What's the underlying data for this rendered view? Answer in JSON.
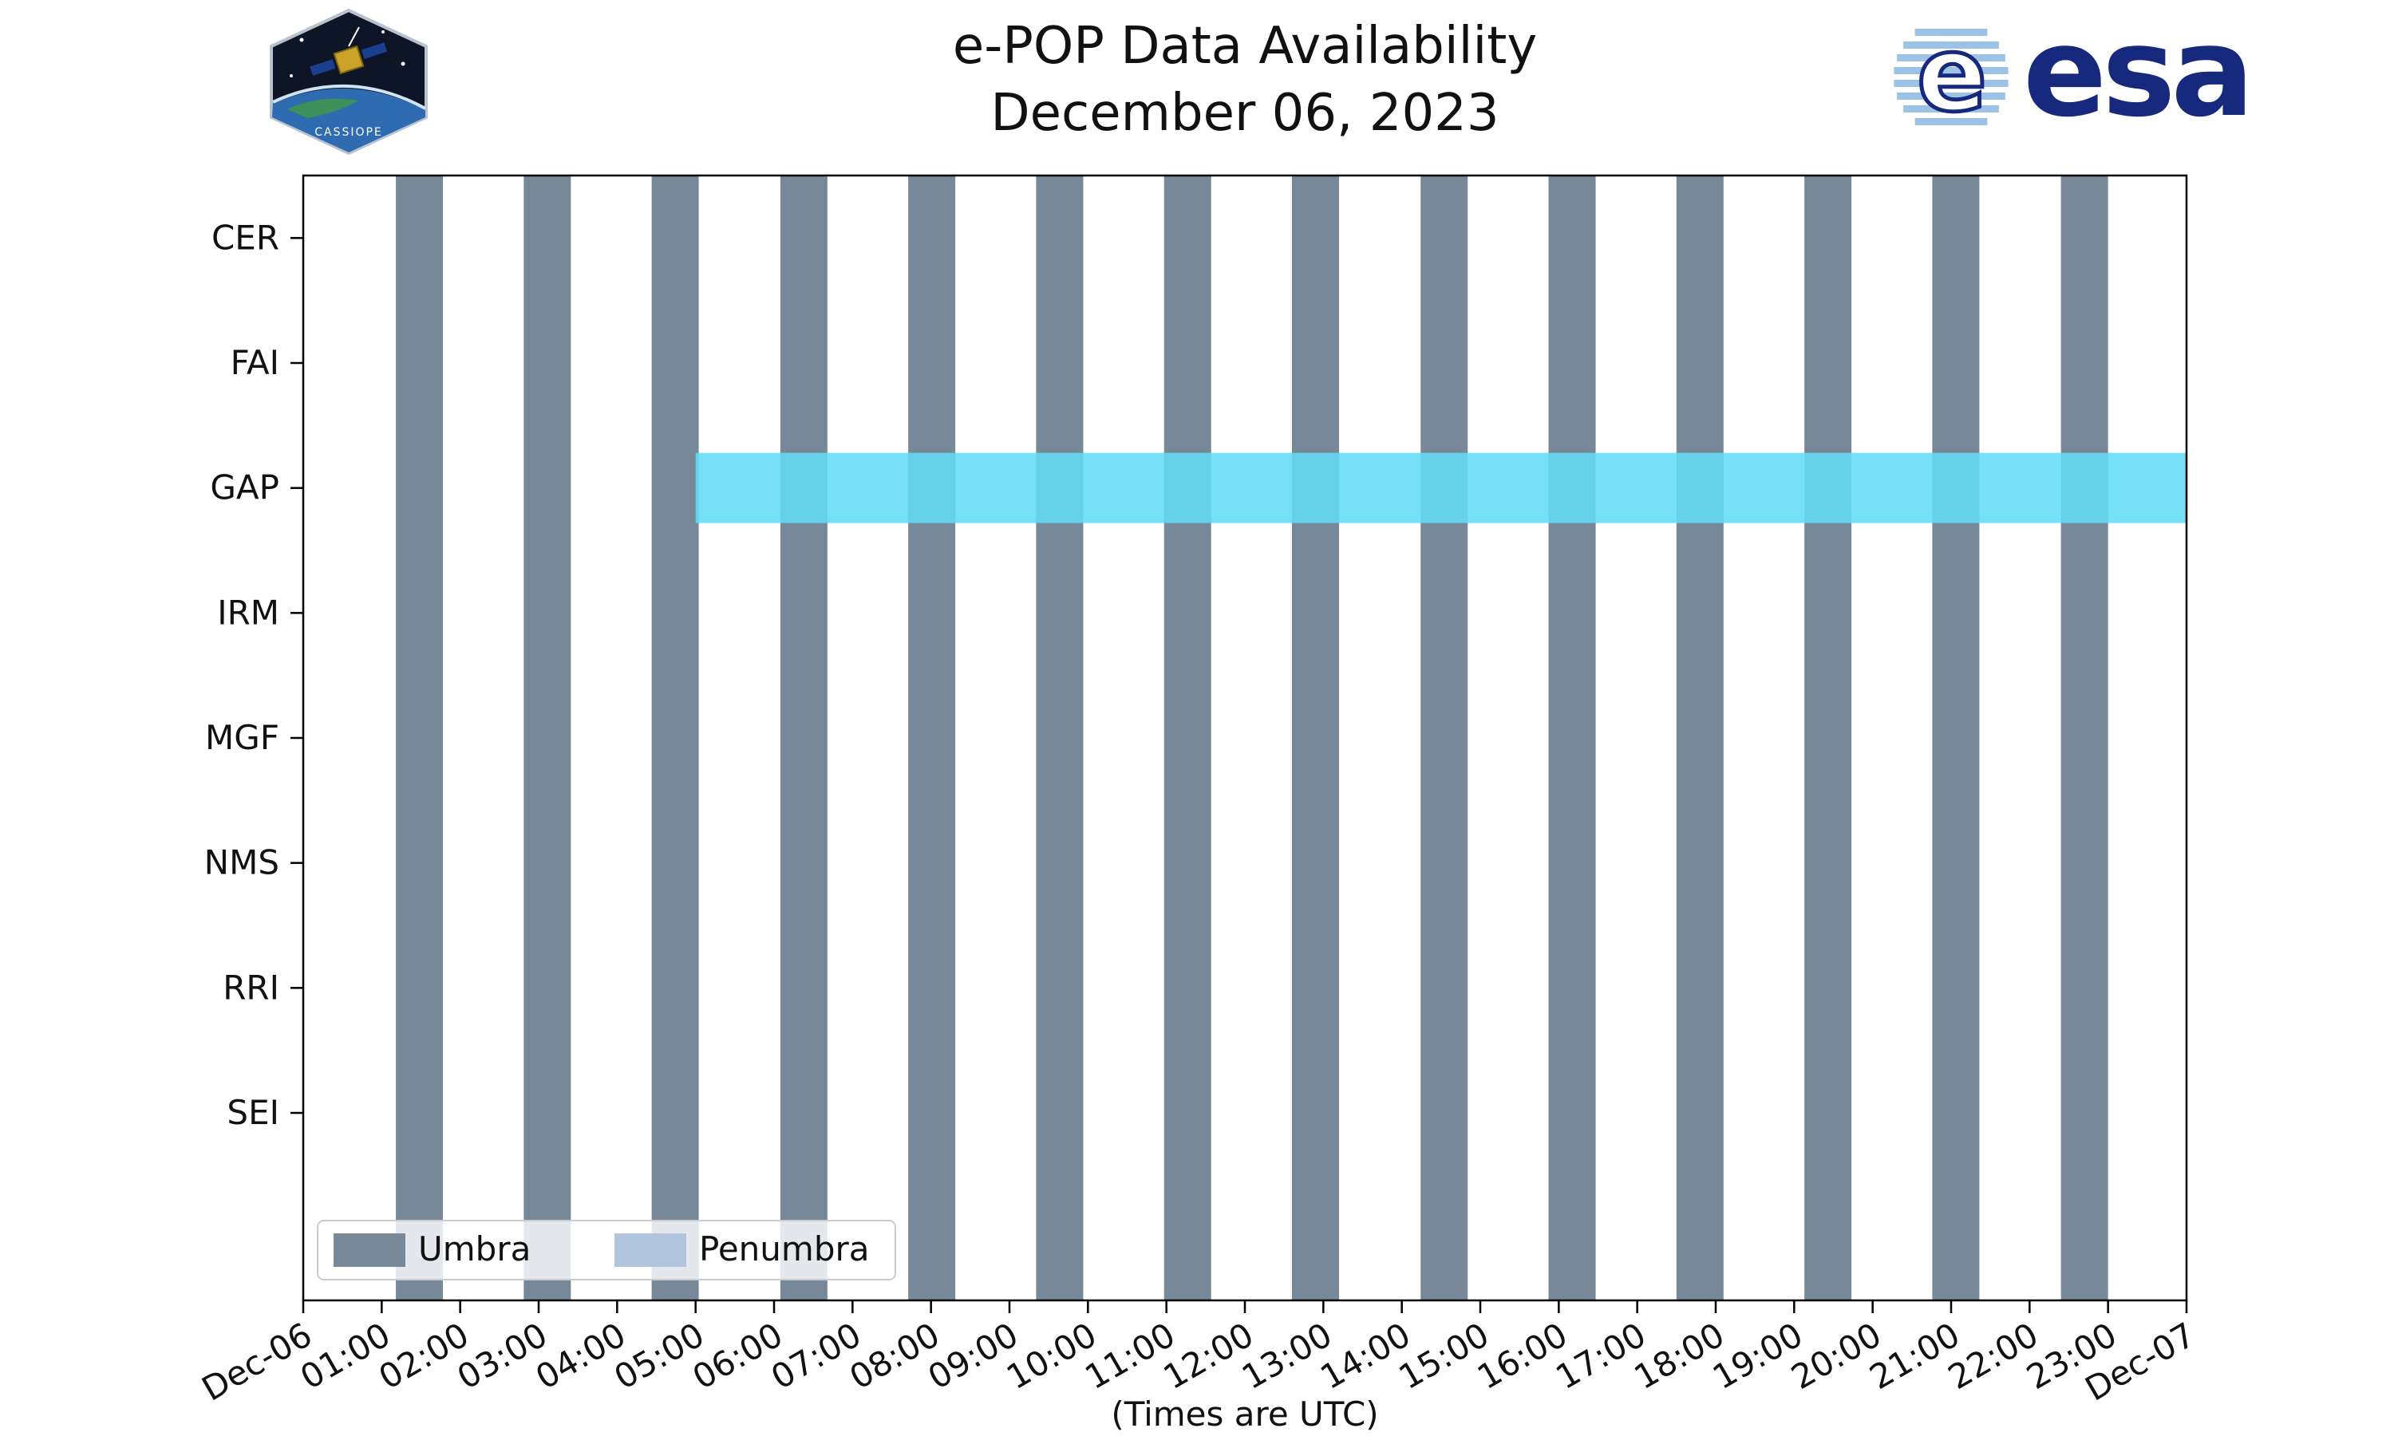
{
  "header": {
    "title_line1": "e-POP Data Availability",
    "title_line2": "December 06, 2023",
    "cassiope_label": "CASSIOPE",
    "esa_logo_text": "esa"
  },
  "chart_data": {
    "type": "bar",
    "subtype": "timeline-availability",
    "title": "e-POP Data Availability",
    "subtitle": "December 06, 2023",
    "xlabel": "(Times are UTC)",
    "instruments": [
      "CER",
      "FAI",
      "GAP",
      "IRM",
      "MGF",
      "NMS",
      "RRI",
      "SEI"
    ],
    "x_ticks": [
      "Dec-06",
      "01:00",
      "02:00",
      "03:00",
      "04:00",
      "05:00",
      "06:00",
      "07:00",
      "08:00",
      "09:00",
      "10:00",
      "11:00",
      "12:00",
      "13:00",
      "14:00",
      "15:00",
      "16:00",
      "17:00",
      "18:00",
      "19:00",
      "20:00",
      "21:00",
      "22:00",
      "23:00",
      "Dec-07"
    ],
    "x_range_hours": [
      0,
      24
    ],
    "umbra_intervals_hours": [
      [
        1.18,
        1.78
      ],
      [
        2.81,
        3.41
      ],
      [
        4.44,
        5.04
      ],
      [
        6.08,
        6.68
      ],
      [
        7.71,
        8.31
      ],
      [
        9.34,
        9.94
      ],
      [
        10.97,
        11.57
      ],
      [
        12.6,
        13.2
      ],
      [
        14.24,
        14.84
      ],
      [
        15.87,
        16.47
      ],
      [
        17.5,
        18.1
      ],
      [
        19.13,
        19.73
      ],
      [
        20.76,
        21.36
      ],
      [
        22.4,
        23.0
      ]
    ],
    "availability": [
      {
        "instrument": "GAP",
        "start_hour": 5.0,
        "end_hour": 24.0
      }
    ],
    "legend": [
      {
        "label": "Umbra",
        "color": "#778899"
      },
      {
        "label": "Penumbra",
        "color": "#b0c4de"
      }
    ],
    "colors": {
      "umbra": "#778899",
      "penumbra": "#b0c4de",
      "gap_band": "#63dcf5",
      "axis": "#000000",
      "esa_blue": "#16297c",
      "globe_stripe": "#9cc3e5"
    },
    "grid": false,
    "legend_position": "lower left"
  }
}
